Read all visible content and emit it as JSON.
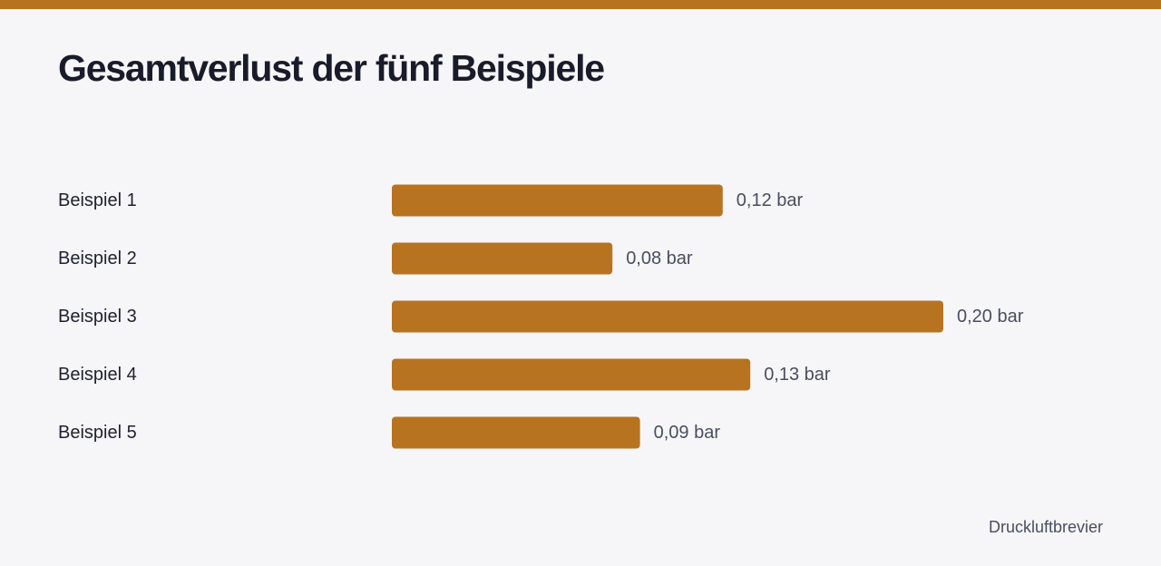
{
  "colors": {
    "accent": "#b87320",
    "background": "#f6f6f8",
    "title": "#1a1b2a",
    "label": "#1f2030",
    "value_label": "#4a4d60"
  },
  "footer": {
    "source": "Druckluftbrevier"
  },
  "chart_data": {
    "type": "bar",
    "orientation": "horizontal",
    "title": "Gesamtverlust der fünf Beispiele",
    "categories": [
      "Beispiel 1",
      "Beispiel 2",
      "Beispiel 3",
      "Beispiel 4",
      "Beispiel 5"
    ],
    "values": [
      0.12,
      0.08,
      0.2,
      0.13,
      0.09
    ],
    "value_labels": [
      "0,12 bar",
      "0,08 bar",
      "0,20 bar",
      "0,13 bar",
      "0,09 bar"
    ],
    "unit": "bar",
    "xlim": [
      0,
      0.2
    ],
    "grid": false,
    "legend": "none"
  }
}
